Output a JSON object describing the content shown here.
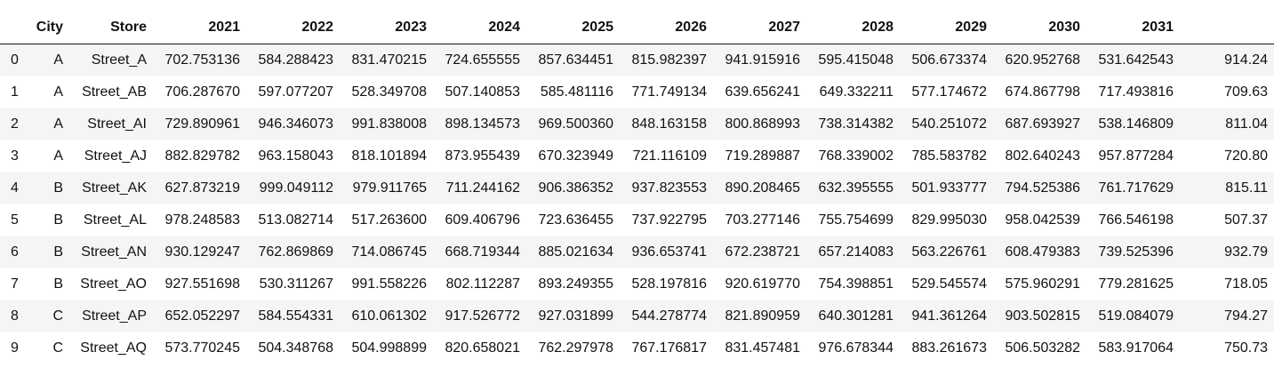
{
  "table": {
    "columns": [
      "",
      "City",
      "Store",
      "2021",
      "2022",
      "2023",
      "2024",
      "2025",
      "2026",
      "2027",
      "2028",
      "2029",
      "2030",
      "2031",
      ""
    ],
    "rows": [
      [
        "0",
        "A",
        "Street_A",
        "702.753136",
        "584.288423",
        "831.470215",
        "724.655555",
        "857.634451",
        "815.982397",
        "941.915916",
        "595.415048",
        "506.673374",
        "620.952768",
        "531.642543",
        "914.24"
      ],
      [
        "1",
        "A",
        "Street_AB",
        "706.287670",
        "597.077207",
        "528.349708",
        "507.140853",
        "585.481116",
        "771.749134",
        "639.656241",
        "649.332211",
        "577.174672",
        "674.867798",
        "717.493816",
        "709.63"
      ],
      [
        "2",
        "A",
        "Street_AI",
        "729.890961",
        "946.346073",
        "991.838008",
        "898.134573",
        "969.500360",
        "848.163158",
        "800.868993",
        "738.314382",
        "540.251072",
        "687.693927",
        "538.146809",
        "811.04"
      ],
      [
        "3",
        "A",
        "Street_AJ",
        "882.829782",
        "963.158043",
        "818.101894",
        "873.955439",
        "670.323949",
        "721.116109",
        "719.289887",
        "768.339002",
        "785.583782",
        "802.640243",
        "957.877284",
        "720.80"
      ],
      [
        "4",
        "B",
        "Street_AK",
        "627.873219",
        "999.049112",
        "979.911765",
        "711.244162",
        "906.386352",
        "937.823553",
        "890.208465",
        "632.395555",
        "501.933777",
        "794.525386",
        "761.717629",
        "815.11"
      ],
      [
        "5",
        "B",
        "Street_AL",
        "978.248583",
        "513.082714",
        "517.263600",
        "609.406796",
        "723.636455",
        "737.922795",
        "703.277146",
        "755.754699",
        "829.995030",
        "958.042539",
        "766.546198",
        "507.37"
      ],
      [
        "6",
        "B",
        "Street_AN",
        "930.129247",
        "762.869869",
        "714.086745",
        "668.719344",
        "885.021634",
        "936.653741",
        "672.238721",
        "657.214083",
        "563.226761",
        "608.479383",
        "739.525396",
        "932.79"
      ],
      [
        "7",
        "B",
        "Street_AO",
        "927.551698",
        "530.311267",
        "991.558226",
        "802.112287",
        "893.249355",
        "528.197816",
        "920.619770",
        "754.398851",
        "529.545574",
        "575.960291",
        "779.281625",
        "718.05"
      ],
      [
        "8",
        "C",
        "Street_AP",
        "652.052297",
        "584.554331",
        "610.061302",
        "917.526772",
        "927.031899",
        "544.278774",
        "821.890959",
        "640.301281",
        "941.361264",
        "903.502815",
        "519.084079",
        "794.27"
      ],
      [
        "9",
        "C",
        "Street_AQ",
        "573.770245",
        "504.348768",
        "504.998899",
        "820.658021",
        "762.297978",
        "767.176817",
        "831.457481",
        "976.678344",
        "883.261673",
        "506.503282",
        "583.917064",
        "750.73"
      ]
    ]
  }
}
